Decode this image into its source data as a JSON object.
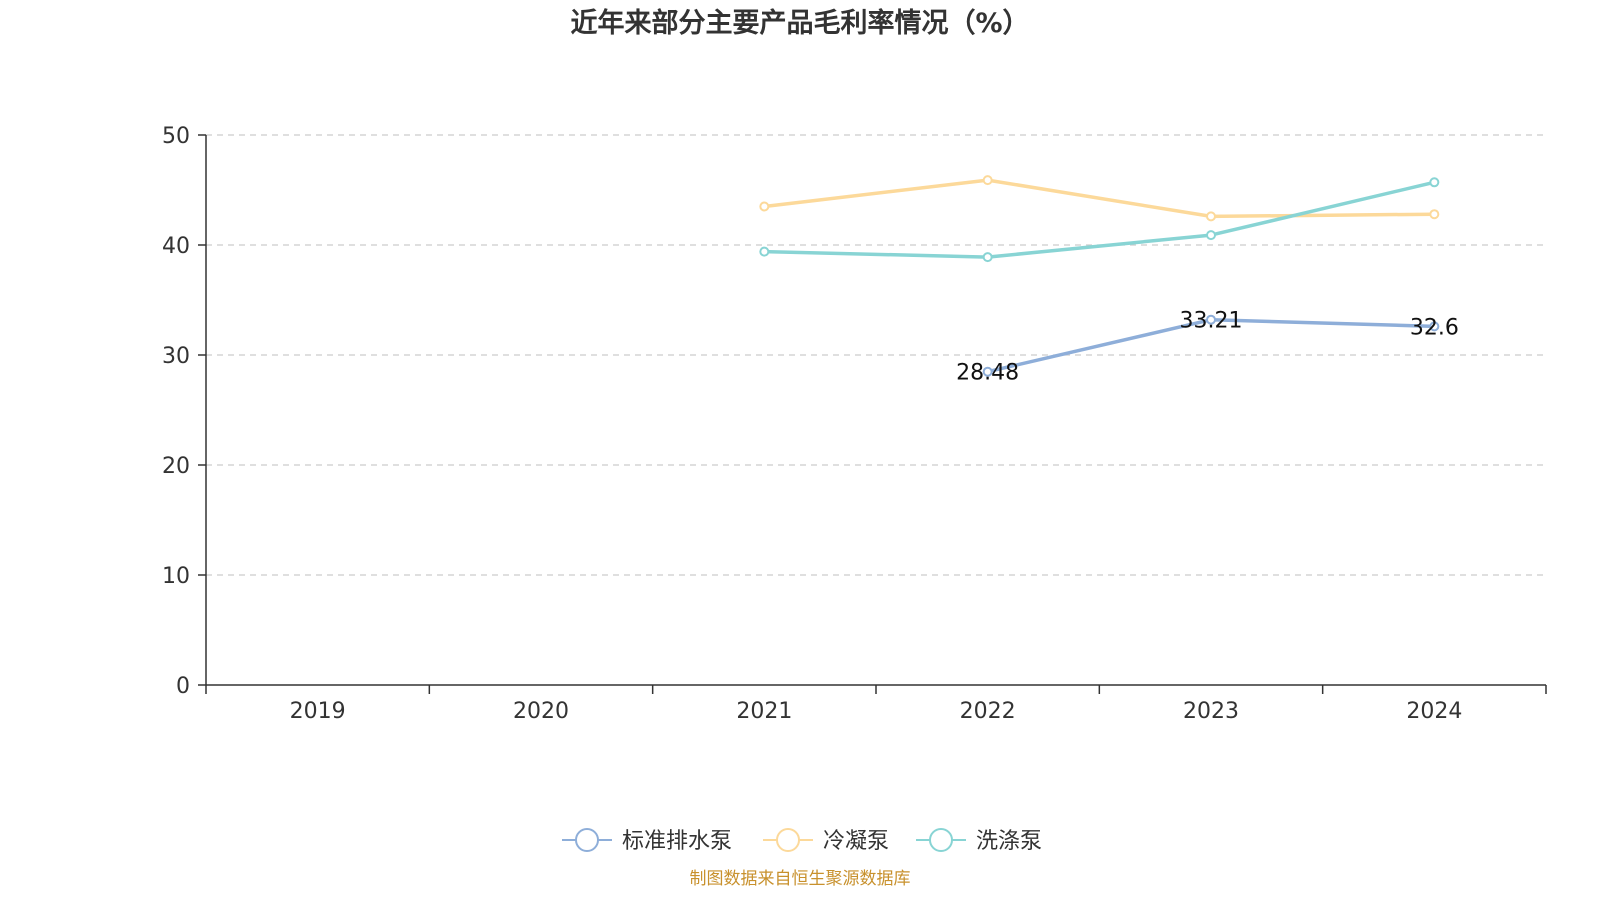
{
  "chart_data": {
    "type": "line",
    "title": "近年来部分主要产品毛利率情况（%）",
    "categories": [
      "2019",
      "2020",
      "2021",
      "2022",
      "2023",
      "2024"
    ],
    "ylim": [
      0,
      50
    ],
    "yticks": [
      0,
      10,
      20,
      30,
      40,
      50
    ],
    "grid": true,
    "legend_position": "bottom-center",
    "xlabel": "",
    "ylabel": "",
    "series": [
      {
        "name": "标准排水泵",
        "color": "#8eaed9",
        "values": [
          null,
          null,
          null,
          28.48,
          33.21,
          32.6
        ],
        "labels": [
          null,
          null,
          null,
          "28.48",
          "33.21",
          "32.6"
        ]
      },
      {
        "name": "冷凝泵",
        "color": "#fcd99a",
        "values": [
          null,
          null,
          43.5,
          45.9,
          42.6,
          42.8
        ],
        "labels": [
          null,
          null,
          null,
          null,
          null,
          null
        ]
      },
      {
        "name": "洗涤泵",
        "color": "#88d4d4",
        "values": [
          null,
          null,
          39.4,
          38.9,
          40.9,
          45.7
        ],
        "labels": [
          null,
          null,
          null,
          null,
          null,
          null
        ]
      }
    ]
  },
  "source": {
    "text": "制图数据来自恒生聚源数据库",
    "color": "#c8912d"
  }
}
